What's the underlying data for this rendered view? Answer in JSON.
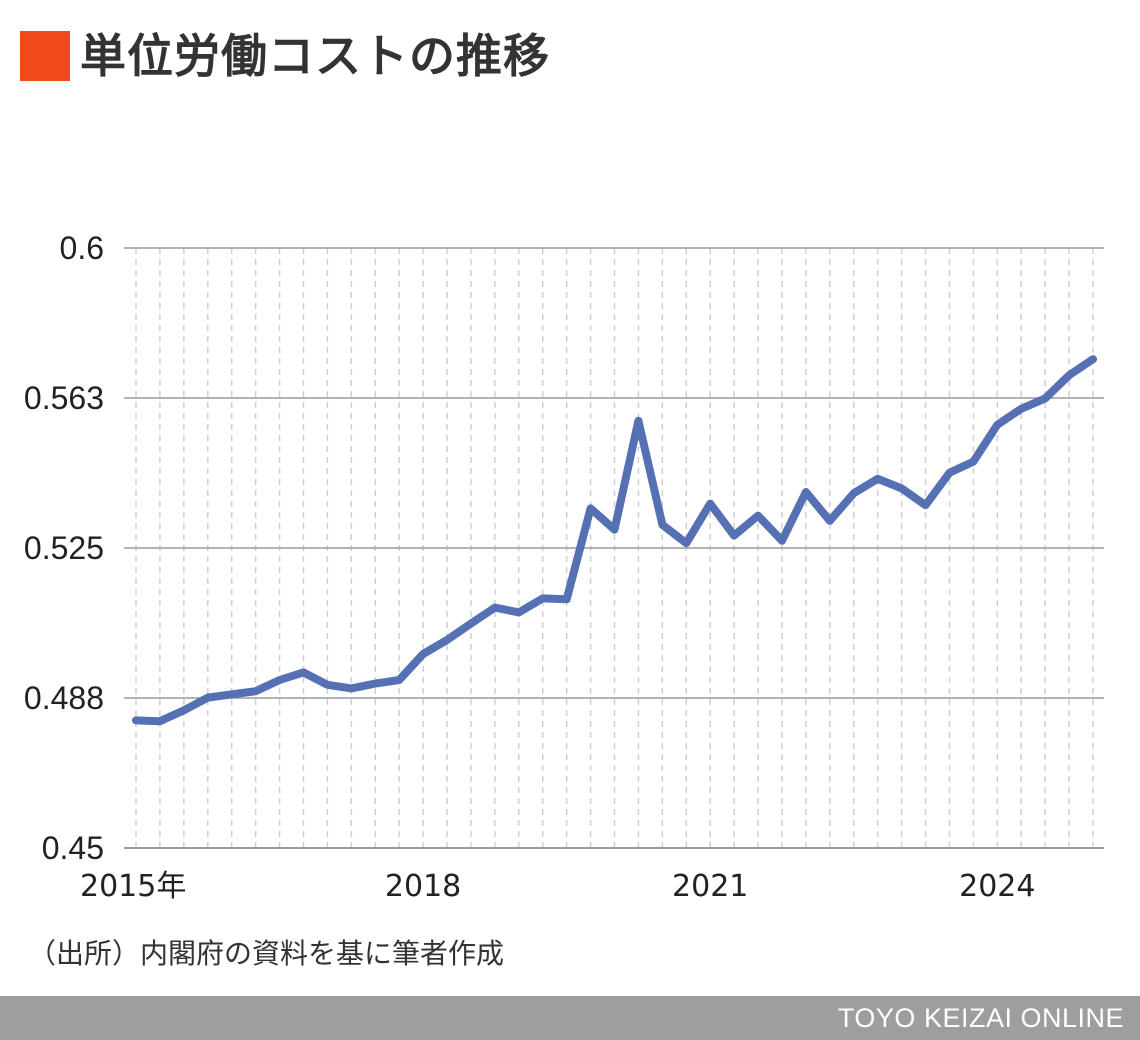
{
  "colors": {
    "accent": "#f04a1a",
    "line": "#5670b4",
    "footer_bg": "#9e9e9e",
    "grid_major": "#9a9a9a",
    "grid_minor": "#d0d0d0"
  },
  "title": "単位労働コストの推移",
  "source": "（出所）内閣府の資料を基に筆者作成",
  "footer": "TOYO KEIZAI ONLINE",
  "chart_data": {
    "type": "line",
    "title": "単位労働コストの推移",
    "xlabel": "",
    "ylabel": "",
    "ylim": [
      0.45,
      0.6
    ],
    "yticks": [
      "0.6",
      "0.563",
      "0.525",
      "0.488",
      "0.45"
    ],
    "ytick_values": [
      0.6,
      0.5625,
      0.525,
      0.4875,
      0.45
    ],
    "xtick_labels": [
      {
        "label": "2015年",
        "index": 0
      },
      {
        "label": "2018",
        "index": 12
      },
      {
        "label": "2021",
        "index": 24
      },
      {
        "label": "2024",
        "index": 36
      }
    ],
    "x_start": "2015Q1",
    "x_end": "2025Q1",
    "grid": true,
    "legend": "none",
    "series": [
      {
        "values": [
          0.4819,
          0.4817,
          0.4844,
          0.4876,
          0.4884,
          0.4892,
          0.492,
          0.4939,
          0.4908,
          0.4899,
          0.4911,
          0.492,
          0.4985,
          0.502,
          0.5061,
          0.5101,
          0.5089,
          0.5124,
          0.5122,
          0.5349,
          0.5296,
          0.5568,
          0.5308,
          0.5262,
          0.5361,
          0.5281,
          0.5331,
          0.5268,
          0.539,
          0.5318,
          0.5387,
          0.5423,
          0.5399,
          0.5357,
          0.5438,
          0.5466,
          0.5558,
          0.5598,
          0.5624,
          0.5682,
          0.5722
        ]
      }
    ]
  }
}
